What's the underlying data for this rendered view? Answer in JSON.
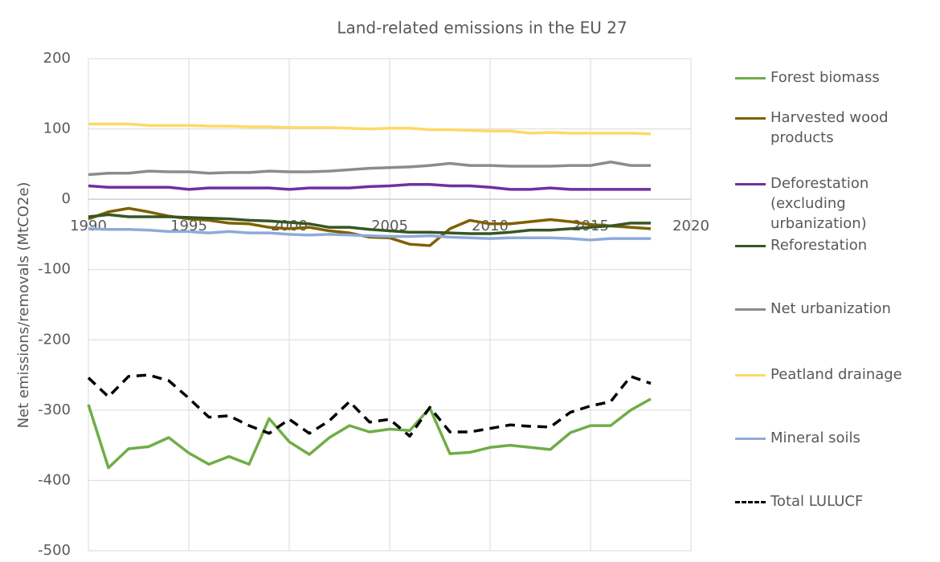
{
  "chart_data": {
    "type": "line",
    "title": "Land-related emissions in the EU 27",
    "y_label": "Net emissions/removals (MtCO2e)",
    "x": [
      1990,
      1991,
      1992,
      1993,
      1994,
      1995,
      1996,
      1997,
      1998,
      1999,
      2000,
      2001,
      2002,
      2003,
      2004,
      2005,
      2006,
      2007,
      2008,
      2009,
      2010,
      2011,
      2012,
      2013,
      2014,
      2015,
      2016,
      2017,
      2018
    ],
    "xlim": [
      1990,
      2020
    ],
    "xticks": [
      1990,
      1995,
      2000,
      2005,
      2010,
      2015,
      2020
    ],
    "ylim": [
      -500,
      200
    ],
    "yticks": [
      -500,
      -400,
      -300,
      -200,
      -100,
      0,
      100,
      200
    ],
    "grid": true,
    "legend": "right",
    "series": [
      {
        "name": "Forest biomass",
        "color": "#70ad47",
        "dash": false,
        "values": [
          -292,
          -382,
          -355,
          -352,
          -339,
          -361,
          -377,
          -366,
          -377,
          -312,
          -345,
          -363,
          -339,
          -322,
          -331,
          -327,
          -329,
          -297,
          -362,
          -360,
          -353,
          -350,
          -353,
          -356,
          -332,
          -322,
          -322,
          -300,
          -284
        ]
      },
      {
        "name": "Harvested wood products",
        "color": "#7f6000",
        "dash": false,
        "values": [
          -28,
          -18,
          -13,
          -18,
          -24,
          -28,
          -30,
          -34,
          -35,
          -40,
          -42,
          -40,
          -45,
          -48,
          -54,
          -55,
          -64,
          -66,
          -42,
          -30,
          -35,
          -35,
          -32,
          -29,
          -32,
          -36,
          -38,
          -40,
          -42
        ]
      },
      {
        "name": "Deforestation (excluding urbanization)",
        "color": "#7030a0",
        "dash": false,
        "values": [
          19,
          17,
          17,
          17,
          17,
          14,
          16,
          16,
          16,
          16,
          14,
          16,
          16,
          16,
          18,
          19,
          21,
          21,
          19,
          19,
          17,
          14,
          14,
          16,
          14,
          14,
          14,
          14,
          14
        ]
      },
      {
        "name": "Reforestation",
        "color": "#375623",
        "dash": false,
        "values": [
          -25,
          -22,
          -25,
          -25,
          -25,
          -26,
          -27,
          -28,
          -30,
          -31,
          -33,
          -35,
          -40,
          -40,
          -43,
          -45,
          -47,
          -47,
          -48,
          -49,
          -49,
          -47,
          -44,
          -44,
          -42,
          -40,
          -38,
          -34,
          -34
        ]
      },
      {
        "name": "Net urbanization",
        "color": "#8c8c8c",
        "dash": false,
        "values": [
          35,
          37,
          37,
          40,
          39,
          39,
          37,
          38,
          38,
          40,
          39,
          39,
          40,
          42,
          44,
          45,
          46,
          48,
          51,
          48,
          48,
          47,
          47,
          47,
          48,
          48,
          53,
          48,
          48
        ]
      },
      {
        "name": "Peatland drainage",
        "color": "#ffd966",
        "dash": false,
        "values": [
          107,
          107,
          107,
          105,
          105,
          105,
          104,
          104,
          103,
          103,
          102,
          102,
          102,
          101,
          100,
          101,
          101,
          99,
          99,
          98,
          97,
          97,
          94,
          95,
          94,
          94,
          94,
          94,
          93
        ]
      },
      {
        "name": "Mineral soils",
        "color": "#8eaadb",
        "dash": false,
        "values": [
          -42,
          -43,
          -43,
          -44,
          -46,
          -46,
          -48,
          -46,
          -48,
          -48,
          -50,
          -51,
          -50,
          -51,
          -52,
          -53,
          -53,
          -52,
          -54,
          -55,
          -56,
          -55,
          -55,
          -55,
          -56,
          -58,
          -56,
          -56,
          -56
        ]
      },
      {
        "name": "Total LULUCF",
        "color": "#000000",
        "dash": true,
        "values": [
          -254,
          -281,
          -252,
          -250,
          -258,
          -283,
          -310,
          -308,
          -322,
          -333,
          -313,
          -333,
          -315,
          -288,
          -317,
          -313,
          -337,
          -296,
          -331,
          -331,
          -326,
          -321,
          -323,
          -324,
          -303,
          -294,
          -288,
          -252,
          -262
        ]
      }
    ]
  }
}
